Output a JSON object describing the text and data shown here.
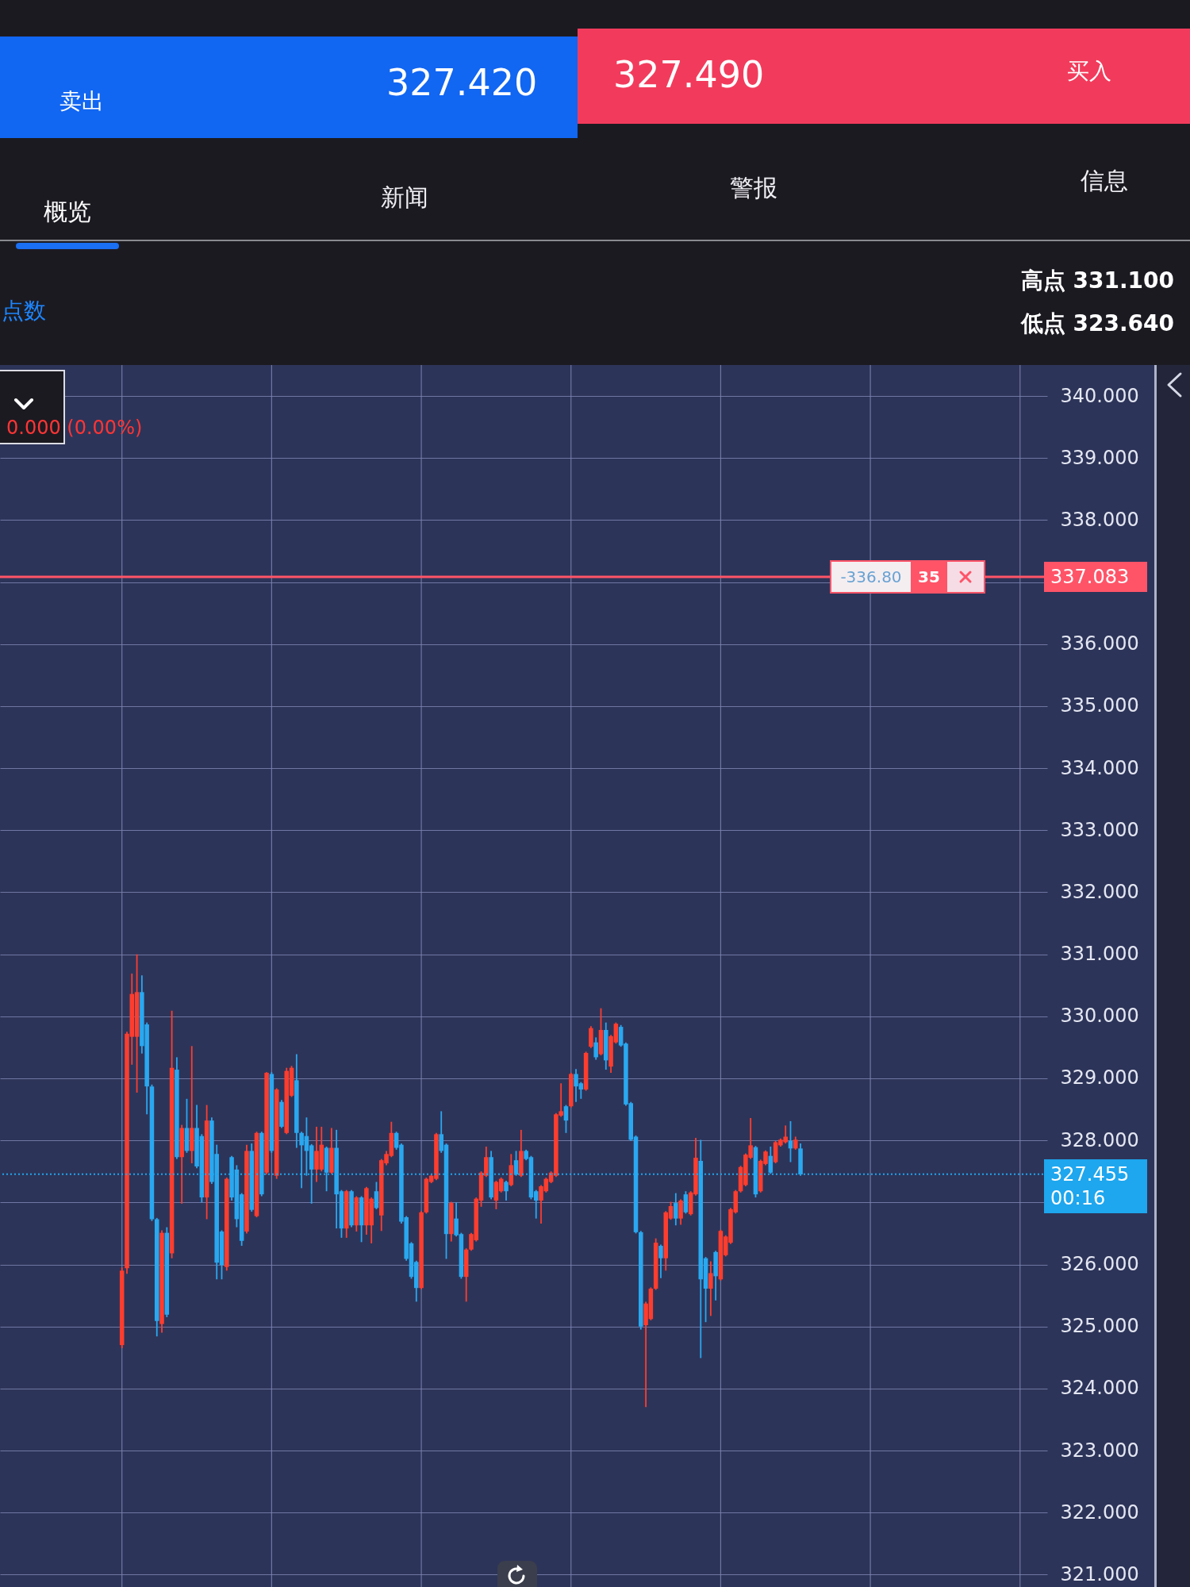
{
  "chart_data": {
    "type": "candlestick",
    "categories": [
      null,
      null,
      null,
      null,
      null,
      null,
      null,
      null,
      null,
      null,
      null,
      null,
      null,
      null,
      null,
      null,
      null,
      null,
      null,
      null,
      null,
      null,
      null,
      null,
      null,
      null,
      null,
      null,
      null,
      null,
      null,
      null,
      null,
      null,
      null,
      null,
      null,
      null,
      null,
      null,
      null,
      null,
      null,
      null,
      null,
      null,
      null,
      null,
      null,
      null,
      null,
      null,
      null,
      null,
      null,
      null,
      null,
      null,
      null,
      null,
      null,
      null,
      null,
      null,
      null,
      null,
      null,
      null,
      null,
      null,
      null,
      null,
      null,
      null,
      null,
      null,
      null,
      null,
      null,
      null,
      null,
      null,
      null,
      null,
      null,
      null,
      null,
      null,
      null,
      null,
      null,
      null,
      null,
      null,
      null,
      null,
      null,
      null,
      null,
      null,
      null,
      null,
      null,
      null,
      null,
      null,
      null,
      null,
      null,
      null,
      null,
      null,
      null,
      null,
      null,
      null,
      null,
      null,
      null,
      null,
      null,
      null,
      null,
      null,
      null,
      null,
      null,
      null,
      null,
      null,
      null,
      null,
      null,
      null,
      null,
      null,
      null,
      null,
      null,
      null,
      null,
      null,
      null,
      null,
      null,
      null,
      null,
      null,
      null,
      null,
      null,
      null,
      null,
      null,
      null,
      null,
      null,
      null,
      null,
      null,
      null,
      null,
      null,
      null,
      null,
      null,
      null,
      null,
      null,
      null,
      null,
      null,
      null,
      null,
      null,
      null,
      null,
      null,
      null,
      null,
      null,
      null,
      null,
      null,
      null,
      null,
      null,
      null,
      null,
      null,
      null,
      null,
      null,
      null,
      null,
      null,
      null,
      null,
      null,
      null,
      null,
      null,
      null,
      null,
      null,
      null,
      null,
      null,
      null,
      null
    ],
    "ohlc": [
      null,
      null,
      null,
      null,
      null,
      null,
      null,
      null,
      null,
      null,
      null,
      null,
      null,
      null,
      null,
      null,
      null,
      null,
      null,
      null,
      null,
      null,
      null,
      null,
      [
        324.7,
        325.95,
        324.65,
        325.9
      ],
      [
        325.94,
        329.75,
        325.85,
        329.72
      ],
      [
        329.67,
        330.69,
        329.22,
        330.36
      ],
      [
        329.67,
        331.0,
        328.77,
        330.39
      ],
      [
        330.39,
        330.66,
        329.4,
        329.52
      ],
      [
        329.87,
        329.9,
        328.42,
        328.87
      ],
      [
        328.87,
        328.9,
        326.7,
        326.73
      ],
      [
        326.73,
        326.75,
        324.84,
        325.09
      ],
      [
        325.04,
        326.55,
        324.9,
        326.51
      ],
      [
        326.51,
        326.6,
        325.15,
        325.19
      ],
      [
        326.18,
        330.09,
        326.1,
        329.17
      ],
      [
        329.14,
        329.34,
        327.7,
        327.73
      ],
      [
        327.73,
        328.25,
        326.98,
        328.2
      ],
      [
        328.2,
        328.67,
        327.8,
        327.83
      ],
      [
        327.83,
        329.52,
        327.63,
        328.2
      ],
      [
        328.2,
        328.57,
        327.55,
        327.58
      ],
      [
        328.07,
        328.1,
        327.0,
        327.08
      ],
      [
        327.08,
        328.57,
        326.73,
        328.32
      ],
      [
        328.32,
        328.37,
        327.3,
        327.33
      ],
      [
        327.78,
        327.93,
        325.76,
        326.03
      ],
      [
        326.53,
        326.55,
        325.76,
        325.99
      ],
      [
        325.96,
        327.4,
        325.9,
        327.38
      ],
      [
        327.73,
        327.75,
        327.03,
        327.08
      ],
      [
        327.53,
        327.6,
        326.6,
        326.73
      ],
      [
        327.13,
        327.15,
        326.3,
        326.38
      ],
      [
        326.53,
        327.93,
        326.5,
        327.83
      ],
      [
        327.83,
        327.95,
        326.85,
        326.88
      ],
      [
        326.78,
        328.14,
        326.76,
        328.12
      ],
      [
        328.12,
        328.14,
        327.1,
        327.13
      ],
      [
        327.48,
        329.1,
        327.45,
        329.09
      ],
      [
        329.07,
        329.1,
        327.8,
        327.83
      ],
      [
        327.43,
        328.84,
        327.38,
        328.82
      ],
      [
        328.62,
        328.65,
        328.2,
        328.22
      ],
      [
        328.12,
        329.17,
        328.1,
        329.12
      ],
      [
        328.72,
        329.2,
        328.7,
        329.17
      ],
      [
        328.97,
        329.39,
        327.88,
        328.12
      ],
      [
        328.12,
        328.14,
        327.23,
        327.92
      ],
      [
        328.07,
        328.37,
        327.43,
        327.83
      ],
      [
        327.92,
        327.94,
        326.98,
        327.53
      ],
      [
        327.53,
        328.22,
        327.33,
        327.83
      ],
      [
        327.53,
        328.22,
        327.5,
        327.93
      ],
      [
        327.88,
        327.9,
        327.18,
        327.48
      ],
      [
        327.48,
        328.2,
        327.46,
        327.88
      ],
      [
        327.88,
        328.17,
        326.58,
        327.13
      ],
      [
        327.18,
        327.2,
        326.43,
        326.58
      ],
      [
        326.58,
        327.2,
        326.43,
        327.18
      ],
      [
        327.18,
        327.2,
        326.6,
        326.63
      ],
      [
        326.63,
        327.1,
        326.53,
        327.08
      ],
      [
        327.08,
        327.1,
        326.36,
        326.63
      ],
      [
        326.63,
        327.25,
        326.48,
        327.23
      ],
      [
        326.63,
        327.08,
        326.34,
        327.06
      ],
      [
        327.18,
        327.33,
        326.89,
        326.91
      ],
      [
        326.79,
        327.7,
        326.54,
        327.68
      ],
      [
        327.63,
        327.83,
        327.6,
        327.78
      ],
      [
        327.75,
        328.3,
        327.73,
        328.12
      ],
      [
        328.12,
        328.14,
        327.85,
        327.88
      ],
      [
        327.93,
        327.95,
        326.66,
        326.69
      ],
      [
        326.76,
        326.78,
        326.06,
        326.09
      ],
      [
        326.34,
        326.36,
        325.77,
        325.8
      ],
      [
        326.04,
        326.06,
        325.4,
        325.62
      ],
      [
        325.62,
        326.86,
        325.6,
        326.84
      ],
      [
        326.84,
        327.4,
        326.82,
        327.38
      ],
      [
        327.33,
        327.45,
        327.31,
        327.43
      ],
      [
        327.38,
        328.12,
        327.36,
        328.1
      ],
      [
        328.1,
        328.47,
        327.8,
        327.83
      ],
      [
        327.93,
        327.95,
        326.09,
        326.49
      ],
      [
        326.49,
        327.01,
        326.37,
        326.99
      ],
      [
        326.74,
        327.0,
        326.45,
        326.47
      ],
      [
        326.49,
        326.51,
        325.77,
        325.8
      ],
      [
        325.8,
        326.26,
        325.4,
        326.24
      ],
      [
        326.24,
        326.51,
        326.22,
        326.49
      ],
      [
        326.39,
        327.08,
        326.37,
        327.06
      ],
      [
        327.03,
        327.5,
        326.93,
        327.48
      ],
      [
        327.43,
        327.9,
        327.41,
        327.73
      ],
      [
        327.73,
        327.83,
        327.05,
        327.08
      ],
      [
        327.03,
        327.35,
        326.89,
        327.33
      ],
      [
        327.18,
        327.4,
        327.16,
        327.38
      ],
      [
        327.33,
        327.35,
        327.03,
        327.18
      ],
      [
        327.28,
        327.78,
        327.26,
        327.6
      ],
      [
        327.68,
        327.83,
        327.43,
        327.45
      ],
      [
        327.43,
        328.17,
        327.41,
        327.83
      ],
      [
        327.83,
        327.85,
        327.68,
        327.7
      ],
      [
        327.73,
        327.75,
        327.05,
        327.08
      ],
      [
        327.18,
        327.2,
        326.74,
        327.03
      ],
      [
        327.03,
        327.28,
        326.66,
        327.26
      ],
      [
        327.18,
        327.4,
        327.16,
        327.38
      ],
      [
        327.33,
        327.5,
        327.31,
        327.48
      ],
      [
        327.43,
        328.44,
        327.41,
        328.42
      ],
      [
        328.4,
        328.92,
        328.38,
        328.47
      ],
      [
        328.55,
        328.57,
        328.12,
        328.32
      ],
      [
        328.55,
        329.09,
        328.53,
        329.07
      ],
      [
        329.07,
        329.15,
        328.62,
        328.87
      ],
      [
        328.92,
        328.94,
        328.67,
        328.82
      ],
      [
        328.82,
        329.43,
        328.8,
        329.41
      ],
      [
        329.51,
        329.84,
        329.49,
        329.81
      ],
      [
        329.58,
        329.66,
        329.3,
        329.34
      ],
      [
        329.39,
        330.13,
        329.37,
        329.78
      ],
      [
        329.78,
        329.9,
        329.14,
        329.29
      ],
      [
        329.19,
        329.7,
        329.09,
        329.68
      ],
      [
        329.58,
        329.9,
        329.56,
        329.88
      ],
      [
        329.83,
        329.86,
        329.51,
        329.53
      ],
      [
        329.56,
        329.58,
        328.56,
        328.58
      ],
      [
        328.6,
        328.62,
        327.99,
        328.01
      ],
      [
        328.06,
        328.08,
        326.5,
        326.52
      ],
      [
        326.52,
        326.54,
        324.95,
        325.0
      ],
      [
        325.02,
        325.4,
        323.7,
        325.37
      ],
      [
        325.12,
        325.63,
        325.1,
        325.61
      ],
      [
        325.61,
        326.42,
        325.59,
        326.35
      ],
      [
        326.3,
        326.32,
        325.78,
        326.1
      ],
      [
        326.1,
        326.86,
        325.9,
        326.84
      ],
      [
        326.74,
        327.01,
        326.72,
        326.94
      ],
      [
        326.99,
        327.15,
        326.63,
        326.74
      ],
      [
        326.74,
        327.05,
        326.64,
        327.03
      ],
      [
        327.13,
        327.18,
        326.82,
        326.84
      ],
      [
        326.81,
        327.18,
        326.79,
        327.16
      ],
      [
        327.13,
        328.04,
        327.11,
        327.72
      ],
      [
        327.67,
        328.01,
        324.49,
        325.76
      ],
      [
        326.1,
        326.12,
        325.07,
        325.61
      ],
      [
        325.61,
        326.05,
        325.17,
        325.86
      ],
      [
        326.2,
        326.22,
        325.42,
        325.81
      ],
      [
        325.76,
        326.56,
        325.74,
        326.54
      ],
      [
        326.15,
        326.47,
        326.13,
        326.45
      ],
      [
        326.35,
        326.91,
        326.33,
        326.89
      ],
      [
        326.84,
        327.2,
        326.82,
        327.18
      ],
      [
        327.18,
        327.59,
        327.16,
        327.57
      ],
      [
        327.28,
        327.79,
        327.26,
        327.77
      ],
      [
        327.72,
        328.36,
        327.7,
        327.92
      ],
      [
        327.89,
        327.91,
        327.08,
        327.13
      ],
      [
        327.18,
        327.69,
        327.16,
        327.67
      ],
      [
        327.62,
        327.84,
        327.6,
        327.82
      ],
      [
        327.75,
        327.9,
        327.46,
        327.48
      ],
      [
        327.65,
        327.99,
        327.63,
        327.97
      ],
      [
        327.92,
        328.03,
        327.9,
        328.01
      ],
      [
        327.97,
        328.24,
        327.95,
        328.06
      ],
      [
        327.99,
        328.31,
        327.65,
        327.87
      ],
      [
        327.87,
        328.06,
        327.85,
        328.01
      ],
      [
        327.87,
        327.95,
        327.43,
        327.45
      ],
      null,
      null,
      null,
      null,
      null,
      null,
      null,
      null,
      null,
      null,
      null,
      null,
      null,
      null,
      null,
      null,
      null,
      null,
      null,
      null,
      null,
      null,
      null,
      null,
      null,
      null,
      null,
      null,
      null,
      null,
      null,
      null,
      null,
      null,
      null,
      null,
      null,
      null,
      null,
      null,
      null,
      null,
      null,
      null,
      null,
      null,
      null,
      null,
      null
    ],
    "colors": [
      null,
      null,
      null,
      null,
      null,
      null,
      null,
      null,
      null,
      null,
      null,
      null,
      null,
      null,
      null,
      null,
      null,
      null,
      null,
      null,
      null,
      null,
      null,
      null,
      "#ff3d2e",
      "#ff3d2e",
      "#ff3d2e",
      "#ff3d2e",
      "#29a8f0",
      "#29a8f0",
      "#29a8f0",
      "#29a8f0",
      "#ff3d2e",
      "#29a8f0",
      "#ff3d2e",
      "#29a8f0",
      "#ff3d2e",
      "#29a8f0",
      "#ff3d2e",
      "#29a8f0",
      "#29a8f0",
      "#ff3d2e",
      "#29a8f0",
      "#29a8f0",
      "#29a8f0",
      "#ff3d2e",
      "#29a8f0",
      "#29a8f0",
      "#29a8f0",
      "#ff3d2e",
      "#29a8f0",
      "#ff3d2e",
      "#29a8f0",
      "#ff3d2e",
      "#29a8f0",
      "#ff3d2e",
      "#29a8f0",
      "#ff3d2e",
      "#ff3d2e",
      "#29a8f0",
      "#29a8f0",
      "#29a8f0",
      "#29a8f0",
      "#ff3d2e",
      "#ff3d2e",
      "#29a8f0",
      "#ff3d2e",
      "#29a8f0",
      "#29a8f0",
      "#ff3d2e",
      "#29a8f0",
      "#ff3d2e",
      "#29a8f0",
      "#ff3d2e",
      "#ff3d2e",
      "#29a8f0",
      "#ff3d2e",
      "#ff3d2e",
      "#ff3d2e",
      "#29a8f0",
      "#29a8f0",
      "#29a8f0",
      "#29a8f0",
      "#29a8f0",
      "#ff3d2e",
      "#ff3d2e",
      "#ff3d2e",
      "#ff3d2e",
      "#29a8f0",
      "#29a8f0",
      "#ff3d2e",
      "#29a8f0",
      "#29a8f0",
      "#ff3d2e",
      "#ff3d2e",
      "#ff3d2e",
      "#ff3d2e",
      "#ff3d2e",
      "#29a8f0",
      "#ff3d2e",
      "#ff3d2e",
      "#29a8f0",
      "#ff3d2e",
      "#29a8f0",
      "#ff3d2e",
      "#29a8f0",
      "#29a8f0",
      "#29a8f0",
      "#ff3d2e",
      "#ff3d2e",
      "#ff3d2e",
      "#ff3d2e",
      "#ff3d2e",
      "#29a8f0",
      "#ff3d2e",
      "#29a8f0",
      "#29a8f0",
      "#ff3d2e",
      "#ff3d2e",
      "#29a8f0",
      "#ff3d2e",
      "#29a8f0",
      "#ff3d2e",
      "#ff3d2e",
      "#29a8f0",
      "#29a8f0",
      "#29a8f0",
      "#29a8f0",
      "#29a8f0",
      "#ff3d2e",
      "#ff3d2e",
      "#ff3d2e",
      "#29a8f0",
      "#ff3d2e",
      "#ff3d2e",
      "#29a8f0",
      "#ff3d2e",
      "#29a8f0",
      "#ff3d2e",
      "#ff3d2e",
      "#29a8f0",
      "#29a8f0",
      "#ff3d2e",
      "#29a8f0",
      "#ff3d2e",
      "#ff3d2e",
      "#ff3d2e",
      "#ff3d2e",
      "#ff3d2e",
      "#ff3d2e",
      "#ff3d2e",
      "#29a8f0",
      "#ff3d2e",
      "#ff3d2e",
      "#29a8f0",
      "#ff3d2e",
      "#ff3d2e",
      "#ff3d2e",
      "#29a8f0",
      "#ff3d2e",
      "#29a8f0",
      null,
      null,
      null,
      null,
      null,
      null,
      null,
      null,
      null,
      null,
      null,
      null,
      null,
      null,
      null,
      null,
      null,
      null,
      null,
      null,
      null,
      null,
      null,
      null,
      null,
      null,
      null,
      null,
      null,
      null,
      null,
      null,
      null,
      null,
      null,
      null,
      null,
      null,
      null,
      null,
      null,
      null,
      null,
      null,
      null,
      null,
      null,
      null,
      null
    ],
    "ylim": [
      320.8,
      340.5
    ],
    "yticks": [
      {
        "value": 321,
        "label": "321.000"
      },
      {
        "value": 322,
        "label": "322.000"
      },
      {
        "value": 323,
        "label": "323.000"
      },
      {
        "value": 324,
        "label": "324.000"
      },
      {
        "value": 325,
        "label": "325.000"
      },
      {
        "value": 326,
        "label": "326.000"
      },
      {
        "value": 327,
        "label": null
      },
      {
        "value": 328,
        "label": "328.000"
      },
      {
        "value": 329,
        "label": "329.000"
      },
      {
        "value": 330,
        "label": "330.000"
      },
      {
        "value": 331,
        "label": "331.000"
      },
      {
        "value": 332,
        "label": "332.000"
      },
      {
        "value": 333,
        "label": "333.000"
      },
      {
        "value": 334,
        "label": "334.000"
      },
      {
        "value": 335,
        "label": "335.000"
      },
      {
        "value": 336,
        "label": "336.000"
      },
      {
        "value": 337,
        "label": null
      },
      {
        "value": 338,
        "label": "338.000"
      },
      {
        "value": 339,
        "label": "339.000"
      },
      {
        "value": 340,
        "label": "340.000"
      }
    ],
    "grid": true,
    "ref_lines": [
      {
        "axis": "y",
        "value": 337.083,
        "label": "337.083",
        "color": "#ff5468",
        "line_style": "solid"
      },
      {
        "axis": "y",
        "value": 327.455,
        "label": "327.455\n00:16",
        "color": "#1ea6ee",
        "line_style": "dotted"
      }
    ],
    "annotations": [
      "卖出",
      "327.420",
      "327.490",
      "买入",
      "概览",
      "新闻",
      "警报",
      "信息",
      "点数",
      "高点 331.100",
      "低点 323.640",
      "0.000 (0.00%)",
      "-336.80",
      "35"
    ]
  }
}
